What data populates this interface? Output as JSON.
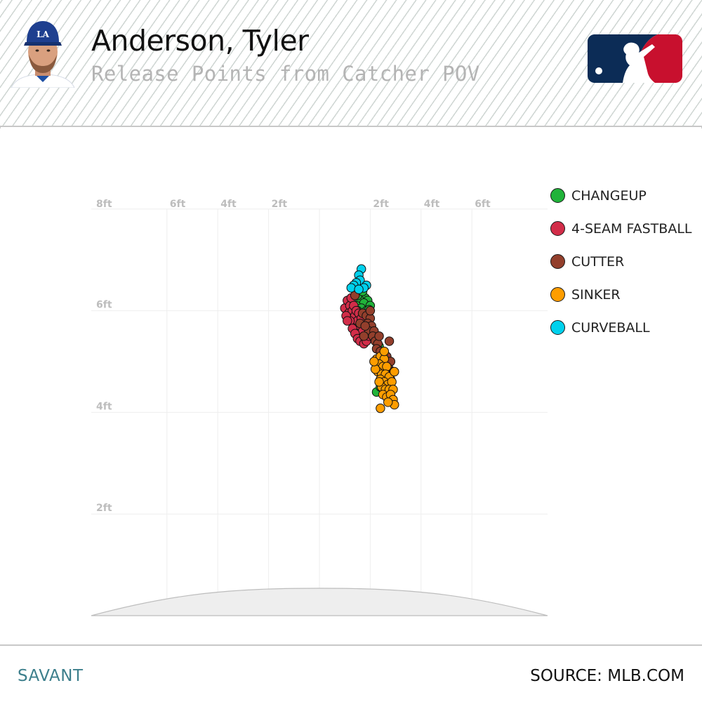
{
  "header": {
    "player_name": "Anderson, Tyler",
    "subtitle": "Release Points from Catcher POV",
    "headshot_icon": "player-headshot-dodgers",
    "logo_icon": "mlb-logo"
  },
  "footer": {
    "brand": "SAVANT",
    "source": "SOURCE: MLB.COM"
  },
  "colors": {
    "CHANGEUP": "#21b33a",
    "4-SEAM FASTBALL": "#d22d49",
    "CUTTER": "#933f2c",
    "SINKER": "#fe9d00",
    "CURVEBALL": "#00d1ed",
    "mlb_blue": "#0c2c56",
    "mlb_red": "#c8102e"
  },
  "chart_data": {
    "type": "scatter",
    "title": "Release Points from Catcher POV",
    "xlabel": "",
    "ylabel": "",
    "xlim": [
      -9,
      9
    ],
    "ylim": [
      0,
      8
    ],
    "x_ticks": [
      {
        "value": -8,
        "label": "8ft"
      },
      {
        "value": -6,
        "label": "6ft"
      },
      {
        "value": -4,
        "label": "4ft"
      },
      {
        "value": -2,
        "label": "2ft"
      },
      {
        "value": 2,
        "label": "2ft"
      },
      {
        "value": 4,
        "label": "4ft"
      },
      {
        "value": 6,
        "label": "6ft"
      }
    ],
    "y_ticks": [
      {
        "value": 6,
        "label": "6ft"
      },
      {
        "value": 4,
        "label": "4ft"
      },
      {
        "value": 2,
        "label": "2ft"
      }
    ],
    "grid": true,
    "legend_position": "right",
    "series": [
      {
        "name": "CHANGEUP",
        "color": "#21b33a",
        "points": [
          [
            1.55,
            6.45
          ],
          [
            1.7,
            6.3
          ],
          [
            1.8,
            6.25
          ],
          [
            1.6,
            6.2
          ],
          [
            1.9,
            6.2
          ],
          [
            1.5,
            6.3
          ],
          [
            1.75,
            6.15
          ],
          [
            1.45,
            6.1
          ],
          [
            2.0,
            6.1
          ],
          [
            1.65,
            6.05
          ],
          [
            1.85,
            6.0
          ],
          [
            1.6,
            5.95
          ],
          [
            1.7,
            6.38
          ],
          [
            1.95,
            6.02
          ],
          [
            1.5,
            6.0
          ],
          [
            2.25,
            4.4
          ],
          [
            2.4,
            4.5
          ],
          [
            2.35,
            5.3
          ]
        ]
      },
      {
        "name": "4-SEAM FASTBALL",
        "color": "#d22d49",
        "points": [
          [
            1.0,
            6.05
          ],
          [
            1.1,
            6.2
          ],
          [
            1.2,
            6.1
          ],
          [
            1.15,
            5.95
          ],
          [
            1.3,
            6.0
          ],
          [
            1.25,
            5.85
          ],
          [
            1.4,
            5.9
          ],
          [
            1.35,
            5.75
          ],
          [
            1.5,
            5.8
          ],
          [
            1.45,
            5.65
          ],
          [
            1.6,
            5.7
          ],
          [
            1.55,
            5.55
          ],
          [
            1.7,
            5.6
          ],
          [
            1.65,
            5.45
          ],
          [
            1.8,
            5.5
          ],
          [
            1.2,
            5.8
          ],
          [
            1.3,
            5.65
          ],
          [
            1.4,
            5.55
          ],
          [
            1.5,
            5.45
          ],
          [
            1.6,
            5.4
          ],
          [
            1.05,
            5.9
          ],
          [
            1.75,
            5.35
          ],
          [
            1.85,
            5.4
          ],
          [
            1.25,
            6.25
          ],
          [
            1.35,
            6.1
          ],
          [
            1.45,
            6.0
          ],
          [
            1.55,
            5.95
          ],
          [
            1.1,
            5.8
          ],
          [
            1.65,
            5.85
          ],
          [
            1.95,
            5.5
          ]
        ]
      },
      {
        "name": "CUTTER",
        "color": "#933f2c",
        "points": [
          [
            1.7,
            5.95
          ],
          [
            1.85,
            5.9
          ],
          [
            2.0,
            5.85
          ],
          [
            1.9,
            5.75
          ],
          [
            2.05,
            5.7
          ],
          [
            1.95,
            5.6
          ],
          [
            2.15,
            5.6
          ],
          [
            2.1,
            5.5
          ],
          [
            2.2,
            5.4
          ],
          [
            2.3,
            5.35
          ],
          [
            2.25,
            5.25
          ],
          [
            2.4,
            5.2
          ],
          [
            2.55,
            5.15
          ],
          [
            2.65,
            5.1
          ],
          [
            2.7,
            4.95
          ],
          [
            2.8,
            5.0
          ],
          [
            2.75,
            4.85
          ],
          [
            2.85,
            4.8
          ],
          [
            2.65,
            4.75
          ],
          [
            2.8,
            4.65
          ],
          [
            2.7,
            4.55
          ],
          [
            2.6,
            4.45
          ],
          [
            2.75,
            5.4
          ],
          [
            1.6,
            5.75
          ],
          [
            1.8,
            5.7
          ],
          [
            2.0,
            6.0
          ],
          [
            1.75,
            5.5
          ],
          [
            2.35,
            5.5
          ],
          [
            1.4,
            6.3
          ],
          [
            2.5,
            4.95
          ]
        ]
      },
      {
        "name": "SINKER",
        "color": "#fe9d00",
        "points": [
          [
            2.25,
            5.05
          ],
          [
            2.4,
            5.1
          ],
          [
            2.55,
            5.05
          ],
          [
            2.35,
            4.95
          ],
          [
            2.5,
            4.9
          ],
          [
            2.65,
            4.9
          ],
          [
            2.3,
            4.8
          ],
          [
            2.45,
            4.75
          ],
          [
            2.6,
            4.75
          ],
          [
            2.75,
            4.7
          ],
          [
            2.4,
            4.65
          ],
          [
            2.55,
            4.6
          ],
          [
            2.7,
            4.55
          ],
          [
            2.85,
            4.6
          ],
          [
            2.45,
            4.5
          ],
          [
            2.6,
            4.45
          ],
          [
            2.75,
            4.45
          ],
          [
            2.9,
            4.45
          ],
          [
            2.5,
            4.35
          ],
          [
            2.65,
            4.3
          ],
          [
            2.8,
            4.35
          ],
          [
            2.95,
            4.8
          ],
          [
            2.35,
            4.6
          ],
          [
            2.2,
            4.85
          ],
          [
            2.15,
            5.0
          ],
          [
            2.9,
            4.25
          ],
          [
            2.95,
            4.15
          ],
          [
            2.4,
            4.08
          ],
          [
            2.7,
            4.2
          ],
          [
            2.55,
            5.2
          ]
        ]
      },
      {
        "name": "CURVEBALL",
        "color": "#00d1ed",
        "points": [
          [
            1.65,
            6.82
          ],
          [
            1.55,
            6.7
          ],
          [
            1.6,
            6.6
          ],
          [
            1.45,
            6.55
          ],
          [
            1.35,
            6.5
          ],
          [
            1.85,
            6.5
          ],
          [
            1.75,
            6.45
          ],
          [
            1.25,
            6.45
          ],
          [
            1.55,
            6.42
          ]
        ]
      }
    ]
  }
}
